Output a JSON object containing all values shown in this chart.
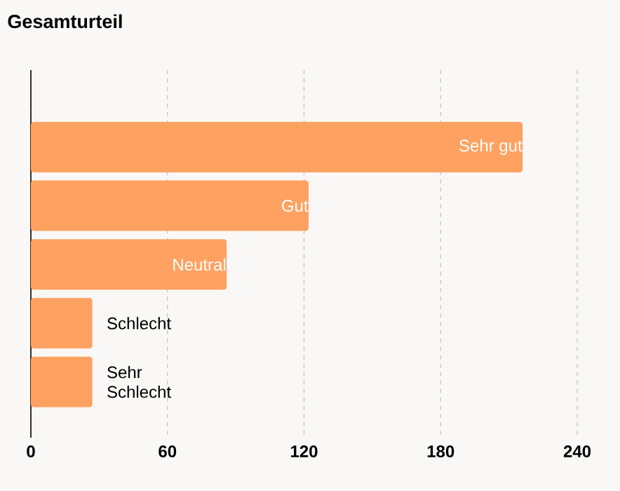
{
  "chart_data": {
    "type": "bar",
    "orientation": "horizontal",
    "title": "Gesamturteil",
    "categories": [
      "Sehr gut",
      "Gut",
      "Neutral",
      "Schlecht",
      "Sehr Schlecht"
    ],
    "values": [
      216,
      122,
      86,
      27,
      27
    ],
    "color": "#ffa261",
    "xlim": [
      0,
      240
    ],
    "xticks": [
      0,
      60,
      120,
      180,
      240
    ],
    "grid": "x"
  }
}
